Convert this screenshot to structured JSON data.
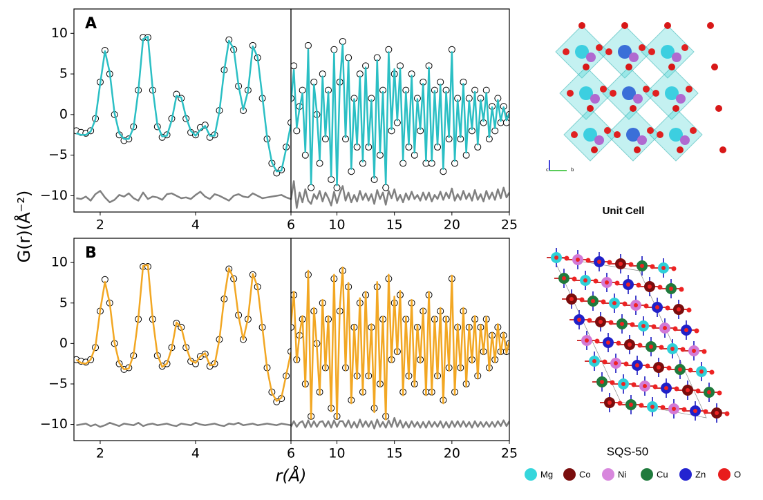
{
  "figure": {
    "ylabel": "G(r)(Å⁻²)",
    "xlabel": "r(Å)"
  },
  "structures": {
    "unit_cell_title": "Unit Cell",
    "axis_c": "c",
    "axis_b": "b",
    "sqs_title": "SQS-50",
    "legend": [
      "Mg",
      "Co",
      "Ni",
      "Cu",
      "Zn",
      "O"
    ]
  },
  "chart_data": [
    {
      "type": "line",
      "panel_label": "A",
      "xlim": [
        1.45,
        6
      ],
      "ylim": [
        -12,
        13
      ],
      "xticks": [
        2,
        4,
        6
      ],
      "yticks": [
        {
          "value": -10,
          "label": "−10"
        },
        {
          "value": -5,
          "label": "−5"
        },
        0,
        5,
        10
      ],
      "x": [
        1.5,
        1.6,
        1.7,
        1.8,
        1.9,
        2.0,
        2.1,
        2.2,
        2.3,
        2.4,
        2.5,
        2.6,
        2.7,
        2.8,
        2.9,
        3.0,
        3.1,
        3.2,
        3.3,
        3.4,
        3.5,
        3.6,
        3.7,
        3.8,
        3.9,
        4.0,
        4.1,
        4.2,
        4.3,
        4.4,
        4.5,
        4.6,
        4.7,
        4.8,
        4.9,
        5.0,
        5.1,
        5.2,
        5.3,
        5.4,
        5.5,
        5.6,
        5.7,
        5.8,
        5.9,
        6.0
      ],
      "series": [
        {
          "style": "open-circle",
          "color": "#000000",
          "values": [
            -2,
            -2.2,
            -2.3,
            -2.0,
            -0.5,
            4,
            7.9,
            5,
            0,
            -2.5,
            -3.2,
            -3.0,
            -1.5,
            3,
            9.5,
            9.5,
            3,
            -1.5,
            -2.8,
            -2.5,
            -0.5,
            2.5,
            2.0,
            -0.5,
            -2.2,
            -2.5,
            -1.6,
            -1.3,
            -2.8,
            -2.5,
            0.5,
            5.5,
            9.2,
            8,
            3.5,
            0.5,
            3,
            8.5,
            7,
            2,
            -3,
            -6,
            -7.2,
            -6.8,
            -4,
            -1
          ]
        },
        {
          "style": "line",
          "color": "#2bbfc4",
          "values": [
            -2.3,
            -2.5,
            -2.5,
            -2.1,
            -0.6,
            3.8,
            7.8,
            5.2,
            0.2,
            -2.3,
            -3.0,
            -3.0,
            -1.6,
            2.9,
            9.3,
            9.6,
            3.2,
            -1.3,
            -2.7,
            -2.6,
            -0.7,
            2.3,
            2.1,
            -0.3,
            -2.0,
            -2.6,
            -1.9,
            -1.4,
            -2.6,
            -2.6,
            0.4,
            5.4,
            9.1,
            8.1,
            3.6,
            0.6,
            2.9,
            8.4,
            7.1,
            2.2,
            -2.8,
            -5.9,
            -7.0,
            -6.9,
            -4.2,
            -1.2
          ]
        },
        {
          "style": "line",
          "color": "#808080",
          "values": [
            -10.3,
            -10.4,
            -10.1,
            -10.6,
            -9.8,
            -9.4,
            -10.2,
            -10.8,
            -10.5,
            -9.9,
            -10.1,
            -9.7,
            -10.3,
            -10.6,
            -9.6,
            -10.4,
            -10.1,
            -10.2,
            -10.5,
            -9.8,
            -9.7,
            -10.0,
            -10.3,
            -10.2,
            -10.4,
            -9.9,
            -9.5,
            -10.1,
            -10.4,
            -9.8,
            -10.0,
            -10.3,
            -10.6,
            -10.0,
            -9.8,
            -10.1,
            -10.2,
            -9.7,
            -10.0,
            -10.3,
            -10.2,
            -10.1,
            -10.0,
            -9.9,
            -10.2,
            -10.4
          ]
        }
      ]
    },
    {
      "type": "line",
      "xlim": [
        6,
        25
      ],
      "ylim": [
        -12,
        13
      ],
      "xticks": [
        10,
        15,
        20,
        25
      ],
      "x": [
        6,
        6.25,
        6.5,
        6.75,
        7,
        7.25,
        7.5,
        7.75,
        8,
        8.25,
        8.5,
        8.75,
        9,
        9.25,
        9.5,
        9.75,
        10,
        10.25,
        10.5,
        10.75,
        11,
        11.25,
        11.5,
        11.75,
        12,
        12.25,
        12.5,
        12.75,
        13,
        13.25,
        13.5,
        13.75,
        14,
        14.25,
        14.5,
        14.75,
        15,
        15.25,
        15.5,
        15.75,
        16,
        16.25,
        16.5,
        16.75,
        17,
        17.25,
        17.5,
        17.75,
        18,
        18.25,
        18.5,
        18.75,
        19,
        19.25,
        19.5,
        19.75,
        20,
        20.25,
        20.5,
        20.75,
        21,
        21.25,
        21.5,
        21.75,
        22,
        22.25,
        22.5,
        22.75,
        23,
        23.25,
        23.5,
        23.75,
        24,
        24.25,
        24.5,
        24.75,
        25
      ],
      "series": [
        {
          "style": "open-circle",
          "color": "#000000",
          "values": [
            2,
            6,
            -2,
            1,
            3,
            -5,
            8.5,
            -9,
            4,
            0,
            -6,
            5,
            -3,
            3,
            -8,
            8,
            -9,
            4,
            9,
            -3,
            7,
            -7,
            2,
            -4,
            5,
            -6,
            6,
            -4,
            2,
            -8,
            7,
            -5,
            3,
            -9,
            8,
            -2,
            5,
            -1,
            6,
            -6,
            3,
            -4,
            5,
            -5,
            2,
            -2,
            4,
            -6,
            6,
            -6,
            3,
            -4,
            4,
            -7,
            3,
            -3,
            8,
            -6,
            2,
            -3,
            4,
            -5,
            2,
            -2,
            3,
            -4,
            2,
            -1,
            3,
            -3,
            1,
            -2,
            2,
            -1,
            1,
            -1,
            0
          ]
        },
        {
          "style": "line",
          "color": "#2bbfc4",
          "values": [
            1.5,
            5.5,
            -1.6,
            0.8,
            2.6,
            -4.6,
            8.0,
            -8.6,
            3.7,
            0.3,
            -5.6,
            4.7,
            -2.7,
            2.8,
            -7.6,
            7.6,
            -8.7,
            3.8,
            8.6,
            -2.8,
            6.6,
            -6.7,
            1.9,
            -3.7,
            4.7,
            -5.8,
            5.8,
            -3.8,
            1.8,
            -7.8,
            6.7,
            -4.7,
            2.8,
            -8.6,
            7.7,
            -1.8,
            5.6,
            -0.7,
            5.7,
            -5.6,
            2.8,
            -3.7,
            4.8,
            -4.7,
            1.9,
            -1.8,
            3.8,
            -5.7,
            5.8,
            -5.7,
            2.9,
            -3.7,
            3.7,
            -6.7,
            2.8,
            -2.8,
            7.7,
            -5.7,
            1.8,
            -2.8,
            3.8,
            -4.7,
            1.7,
            -1.8,
            2.8,
            -3.7,
            1.8,
            -0.8,
            2.7,
            -2.8,
            0.9,
            -1.7,
            1.8,
            -0.8,
            0.9,
            -0.7,
            0.2
          ]
        },
        {
          "style": "line",
          "color": "#808080",
          "values": [
            -10.5,
            -8.2,
            -11.5,
            -9.6,
            -10.8,
            -9.2,
            -10.6,
            -11.0,
            -9.8,
            -10.4,
            -9.4,
            -10.7,
            -9.6,
            -10.3,
            -11.2,
            -9.5,
            -10.9,
            -9.7,
            -8.8,
            -10.6,
            -9.6,
            -10.8,
            -9.9,
            -10.7,
            -9.4,
            -10.5,
            -9.7,
            -10.6,
            -9.8,
            -11.0,
            -9.3,
            -10.4,
            -9.6,
            -11.1,
            -9.4,
            -10.3,
            -9.2,
            -10.6,
            -9.9,
            -10.8,
            -9.7,
            -10.5,
            -9.5,
            -10.4,
            -9.9,
            -10.6,
            -9.6,
            -10.5,
            -9.6,
            -10.7,
            -9.9,
            -10.4,
            -9.5,
            -10.5,
            -9.6,
            -10.3,
            -9.1,
            -10.6,
            -9.8,
            -10.5,
            -9.4,
            -10.4,
            -9.7,
            -10.6,
            -9.3,
            -10.5,
            -9.8,
            -10.7,
            -9.4,
            -10.4,
            -9.6,
            -10.5,
            -9.2,
            -10.3,
            -9.0,
            -10.2,
            -9.6
          ]
        }
      ]
    },
    {
      "type": "line",
      "panel_label": "B",
      "xlim": [
        1.45,
        6
      ],
      "ylim": [
        -12,
        13
      ],
      "xticks": [
        2,
        4,
        6
      ],
      "yticks": [
        {
          "value": -10,
          "label": "−10"
        },
        {
          "value": -5,
          "label": "−5"
        },
        0,
        5,
        10
      ],
      "x": [
        1.5,
        1.6,
        1.7,
        1.8,
        1.9,
        2.0,
        2.1,
        2.2,
        2.3,
        2.4,
        2.5,
        2.6,
        2.7,
        2.8,
        2.9,
        3.0,
        3.1,
        3.2,
        3.3,
        3.4,
        3.5,
        3.6,
        3.7,
        3.8,
        3.9,
        4.0,
        4.1,
        4.2,
        4.3,
        4.4,
        4.5,
        4.6,
        4.7,
        4.8,
        4.9,
        5.0,
        5.1,
        5.2,
        5.3,
        5.4,
        5.5,
        5.6,
        5.7,
        5.8,
        5.9,
        6.0
      ],
      "series": [
        {
          "style": "open-circle",
          "color": "#000000",
          "values": [
            -2,
            -2.2,
            -2.3,
            -2.0,
            -0.5,
            4,
            7.9,
            5,
            0,
            -2.5,
            -3.2,
            -3.0,
            -1.5,
            3,
            9.5,
            9.5,
            3,
            -1.5,
            -2.8,
            -2.5,
            -0.5,
            2.5,
            2.0,
            -0.5,
            -2.2,
            -2.5,
            -1.6,
            -1.3,
            -2.8,
            -2.5,
            0.5,
            5.5,
            9.2,
            8,
            3.5,
            0.5,
            3,
            8.5,
            7,
            2,
            -3,
            -6,
            -7.2,
            -6.8,
            -4,
            -1
          ]
        },
        {
          "style": "line",
          "color": "#f2a723",
          "values": [
            -2.0,
            -2.4,
            -2.5,
            -2.0,
            -0.4,
            4.1,
            7.6,
            5.0,
            0.1,
            -2.4,
            -3.2,
            -3.1,
            -1.4,
            3.1,
            9.6,
            9.7,
            3.1,
            -1.4,
            -2.9,
            -2.5,
            -0.6,
            2.6,
            2.0,
            -0.4,
            -2.1,
            -2.4,
            -1.6,
            -1.2,
            -2.7,
            -2.6,
            0.5,
            5.6,
            9.3,
            8.0,
            3.4,
            0.5,
            3.1,
            8.6,
            7.0,
            2.0,
            -3.1,
            -6.1,
            -7.1,
            -6.7,
            -3.9,
            -1.1
          ]
        },
        {
          "style": "line",
          "color": "#808080",
          "values": [
            -10.1,
            -10.0,
            -9.9,
            -10.2,
            -10.0,
            -10.3,
            -10.1,
            -9.8,
            -10.0,
            -10.2,
            -9.9,
            -10.0,
            -10.1,
            -9.8,
            -10.2,
            -10.0,
            -9.9,
            -10.1,
            -10.0,
            -9.9,
            -10.1,
            -10.2,
            -9.9,
            -10.0,
            -10.1,
            -9.8,
            -10.0,
            -10.1,
            -10.0,
            -9.9,
            -10.1,
            -10.2,
            -9.9,
            -10.0,
            -9.8,
            -10.1,
            -10.0,
            -9.9,
            -10.1,
            -10.0,
            -9.9,
            -10.0,
            -10.1,
            -9.9,
            -10.0,
            -10.1
          ]
        }
      ]
    },
    {
      "type": "line",
      "xlim": [
        6,
        25
      ],
      "ylim": [
        -12,
        13
      ],
      "xticks": [
        10,
        15,
        20,
        25
      ],
      "x": [
        6,
        6.25,
        6.5,
        6.75,
        7,
        7.25,
        7.5,
        7.75,
        8,
        8.25,
        8.5,
        8.75,
        9,
        9.25,
        9.5,
        9.75,
        10,
        10.25,
        10.5,
        10.75,
        11,
        11.25,
        11.5,
        11.75,
        12,
        12.25,
        12.5,
        12.75,
        13,
        13.25,
        13.5,
        13.75,
        14,
        14.25,
        14.5,
        14.75,
        15,
        15.25,
        15.5,
        15.75,
        16,
        16.25,
        16.5,
        16.75,
        17,
        17.25,
        17.5,
        17.75,
        18,
        18.25,
        18.5,
        18.75,
        19,
        19.25,
        19.5,
        19.75,
        20,
        20.25,
        20.5,
        20.75,
        21,
        21.25,
        21.5,
        21.75,
        22,
        22.25,
        22.5,
        22.75,
        23,
        23.25,
        23.5,
        23.75,
        24,
        24.25,
        24.5,
        24.75,
        25
      ],
      "series": [
        {
          "style": "open-circle",
          "color": "#000000",
          "values": [
            2,
            6,
            -2,
            1,
            3,
            -5,
            8.5,
            -9,
            4,
            0,
            -6,
            5,
            -3,
            3,
            -8,
            8,
            -9,
            4,
            9,
            -3,
            7,
            -7,
            2,
            -4,
            5,
            -6,
            6,
            -4,
            2,
            -8,
            7,
            -5,
            3,
            -9,
            8,
            -2,
            5,
            -1,
            6,
            -6,
            3,
            -4,
            5,
            -5,
            2,
            -2,
            4,
            -6,
            6,
            -6,
            3,
            -4,
            4,
            -7,
            3,
            -3,
            8,
            -6,
            2,
            -3,
            4,
            -5,
            2,
            -2,
            3,
            -4,
            2,
            -1,
            3,
            -3,
            1,
            -2,
            2,
            -1,
            1,
            -1,
            0
          ]
        },
        {
          "style": "line",
          "color": "#f2a723",
          "values": [
            2.3,
            6.4,
            -2.3,
            1.2,
            3.4,
            -5.4,
            9.0,
            -9.3,
            4.4,
            -0.3,
            -6.3,
            5.4,
            -3.3,
            3.4,
            -8.4,
            8.5,
            -9.3,
            4.4,
            9.4,
            -3.3,
            7.5,
            -7.4,
            2.3,
            -4.4,
            5.6,
            -6.3,
            6.4,
            -4.3,
            2.4,
            -8.5,
            7.6,
            -5.3,
            3.3,
            -9.4,
            8.5,
            -2.3,
            5.8,
            -1.3,
            6.5,
            -6.4,
            3.3,
            -4.4,
            5.4,
            -5.3,
            2.3,
            -2.4,
            4.3,
            -6.4,
            6.4,
            -6.3,
            3.3,
            -4.3,
            4.4,
            -7.4,
            3.3,
            -3.4,
            8.4,
            -6.3,
            2.4,
            -3.3,
            4.4,
            -5.3,
            2.3,
            -2.4,
            3.4,
            -4.3,
            2.3,
            -1.3,
            3.3,
            -3.4,
            1.3,
            -2.3,
            2.4,
            -1.3,
            1.3,
            -1.2,
            0.3
          ]
        },
        {
          "style": "line",
          "color": "#808080",
          "values": [
            -10.3,
            -9.6,
            -10.3,
            -9.8,
            -9.6,
            -10.4,
            -9.5,
            -10.3,
            -9.6,
            -10.3,
            -9.7,
            -9.6,
            -10.3,
            -9.6,
            -10.4,
            -9.5,
            -10.3,
            -9.6,
            -9.6,
            -10.3,
            -9.5,
            -10.4,
            -9.7,
            -10.4,
            -9.4,
            -10.3,
            -9.6,
            -10.3,
            -9.6,
            -10.5,
            -9.4,
            -10.3,
            -9.7,
            -10.4,
            -9.5,
            -10.3,
            -9.2,
            -10.3,
            -9.5,
            -10.4,
            -9.7,
            -10.4,
            -9.6,
            -10.3,
            -9.7,
            -10.4,
            -9.7,
            -10.4,
            -9.6,
            -10.3,
            -9.7,
            -10.3,
            -9.6,
            -10.4,
            -9.7,
            -10.4,
            -9.6,
            -10.3,
            -9.6,
            -10.3,
            -9.6,
            -10.3,
            -9.7,
            -10.4,
            -9.6,
            -10.3,
            -9.7,
            -10.3,
            -9.7,
            -10.3,
            -9.7,
            -10.3,
            -9.6,
            -10.2,
            -9.5,
            -10.2,
            -9.6
          ]
        }
      ]
    }
  ]
}
